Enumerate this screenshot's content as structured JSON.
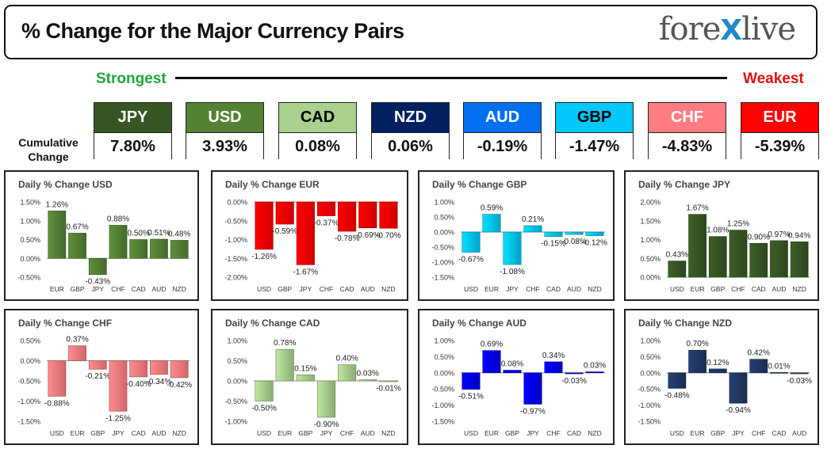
{
  "header": {
    "title": "% Change for the Major Currency Pairs",
    "logo_left": "fore",
    "logo_x": "X",
    "logo_right": "live"
  },
  "scale": {
    "strongest": "Strongest",
    "weakest": "Weakest"
  },
  "cumulative": {
    "label_line1": "Cumulative",
    "label_line2": "Change",
    "items": [
      {
        "name": "JPY",
        "value": "7.80%",
        "bg": "#375623",
        "fg": "#ffffff"
      },
      {
        "name": "USD",
        "value": "3.93%",
        "bg": "#548235",
        "fg": "#ffffff"
      },
      {
        "name": "CAD",
        "value": "0.08%",
        "bg": "#a9d08e",
        "fg": "#000000"
      },
      {
        "name": "NZD",
        "value": "0.06%",
        "bg": "#002060",
        "fg": "#ffffff"
      },
      {
        "name": "AUD",
        "value": "-0.19%",
        "bg": "#0070f0",
        "fg": "#ffffff"
      },
      {
        "name": "GBP",
        "value": "-1.47%",
        "bg": "#00c8f8",
        "fg": "#000000"
      },
      {
        "name": "CHF",
        "value": "-4.83%",
        "bg": "#ff7c80",
        "fg": "#ffffff"
      },
      {
        "name": "EUR",
        "value": "-5.39%",
        "bg": "#ff0000",
        "fg": "#ffffff"
      }
    ]
  },
  "chart_data": [
    {
      "type": "bar",
      "title": "Daily % Change USD",
      "categories": [
        "EUR",
        "GBP",
        "JPY",
        "CHF",
        "CAD",
        "AUD",
        "NZD"
      ],
      "values": [
        1.26,
        0.67,
        -0.43,
        0.88,
        0.5,
        0.51,
        0.48
      ],
      "labels": [
        "1.26%",
        "0.67%",
        "-0.43%",
        "0.88%",
        "0.50%",
        "0.51%",
        "0.48%"
      ],
      "ticks": [
        "1.50%",
        "1.00%",
        "0.50%",
        "0.00%",
        "-0.50%"
      ],
      "ylim": [
        -0.5,
        1.5
      ],
      "color": "#548235"
    },
    {
      "type": "bar",
      "title": "Daily % Change EUR",
      "categories": [
        "USD",
        "GBP",
        "JPY",
        "CHF",
        "CAD",
        "AUD",
        "NZD"
      ],
      "values": [
        -1.26,
        -0.59,
        -1.67,
        -0.37,
        -0.78,
        -0.69,
        -0.7
      ],
      "labels": [
        "-1.26%",
        "-0.59%",
        "-1.67%",
        "-0.37%",
        "-0.78%",
        "-0.69%",
        "-0.70%"
      ],
      "ticks": [
        "0.00%",
        "-0.50%",
        "-1.00%",
        "-1.50%",
        "-2.00%"
      ],
      "ylim": [
        -2.0,
        0.0
      ],
      "color": "#ff0000"
    },
    {
      "type": "bar",
      "title": "Daily % Change GBP",
      "categories": [
        "USD",
        "EUR",
        "JPY",
        "CHF",
        "CAD",
        "AUD",
        "NZD"
      ],
      "values": [
        -0.67,
        0.59,
        -1.08,
        0.21,
        -0.15,
        -0.08,
        -0.12
      ],
      "labels": [
        "-0.67%",
        "0.59%",
        "-1.08%",
        "0.21%",
        "-0.15%",
        "-0.08%",
        "-0.12%"
      ],
      "ticks": [
        "1.00%",
        "0.50%",
        "0.00%",
        "-0.50%",
        "-1.00%",
        "-1.50%"
      ],
      "ylim": [
        -1.5,
        1.0
      ],
      "color": "#00c8f8"
    },
    {
      "type": "bar",
      "title": "Daily % Change JPY",
      "categories": [
        "USD",
        "EUR",
        "GBP",
        "CHF",
        "CAD",
        "AUD",
        "NZD"
      ],
      "values": [
        0.43,
        1.67,
        1.08,
        1.25,
        0.9,
        0.97,
        0.94
      ],
      "labels": [
        "0.43%",
        "1.67%",
        "1.08%",
        "1.25%",
        "0.90%",
        "0.97%",
        "0.94%"
      ],
      "ticks": [
        "2.00%",
        "1.50%",
        "1.00%",
        "0.50%",
        "0.00%"
      ],
      "ylim": [
        0.0,
        2.0
      ],
      "color": "#375623"
    },
    {
      "type": "bar",
      "title": "Daily % Change CHF",
      "categories": [
        "USD",
        "EUR",
        "GBP",
        "JPY",
        "CAD",
        "AUD",
        "NZD"
      ],
      "values": [
        -0.88,
        0.37,
        -0.21,
        -1.25,
        -0.4,
        -0.34,
        -0.42
      ],
      "labels": [
        "-0.88%",
        "0.37%",
        "-0.21%",
        "-1.25%",
        "-0.40%",
        "-0.34%",
        "-0.42%"
      ],
      "ticks": [
        "0.50%",
        "0.00%",
        "-0.50%",
        "-1.00%",
        "-1.50%"
      ],
      "ylim": [
        -1.5,
        0.5
      ],
      "color": "#ff7c80"
    },
    {
      "type": "bar",
      "title": "Daily % Change CAD",
      "categories": [
        "USD",
        "EUR",
        "GBP",
        "JPY",
        "CHF",
        "AUD",
        "NZD"
      ],
      "values": [
        -0.5,
        0.78,
        0.15,
        -0.9,
        0.4,
        0.03,
        -0.01
      ],
      "labels": [
        "-0.50%",
        "0.78%",
        "0.15%",
        "-0.90%",
        "0.40%",
        "0.03%",
        "-0.01%"
      ],
      "ticks": [
        "1.00%",
        "0.50%",
        "0.00%",
        "-0.50%",
        "-1.00%"
      ],
      "ylim": [
        -1.0,
        1.0
      ],
      "color": "#a9d08e"
    },
    {
      "type": "bar",
      "title": "Daily % Change AUD",
      "categories": [
        "USD",
        "EUR",
        "GBP",
        "JPY",
        "CHF",
        "CAD",
        "NZD"
      ],
      "values": [
        -0.51,
        0.69,
        0.08,
        -0.97,
        0.34,
        -0.03,
        0.03
      ],
      "labels": [
        "-0.51%",
        "0.69%",
        "0.08%",
        "-0.97%",
        "0.34%",
        "-0.03%",
        "0.03%"
      ],
      "ticks": [
        "1.00%",
        "0.50%",
        "0.00%",
        "-0.50%",
        "-1.00%",
        "-1.50%"
      ],
      "ylim": [
        -1.5,
        1.0
      ],
      "color": "#0000ee"
    },
    {
      "type": "bar",
      "title": "Daily % Change NZD",
      "categories": [
        "USD",
        "EUR",
        "GBP",
        "JPY",
        "CHF",
        "CAD",
        "AUD"
      ],
      "values": [
        -0.48,
        0.7,
        0.12,
        -0.94,
        0.42,
        0.01,
        -0.03
      ],
      "labels": [
        "-0.48%",
        "0.70%",
        "0.12%",
        "-0.94%",
        "0.42%",
        "0.01%",
        "-0.03%"
      ],
      "ticks": [
        "1.00%",
        "0.50%",
        "0.00%",
        "-0.50%",
        "-1.00%",
        "-1.50%"
      ],
      "ylim": [
        -1.5,
        1.0
      ],
      "color": "#203864"
    }
  ]
}
